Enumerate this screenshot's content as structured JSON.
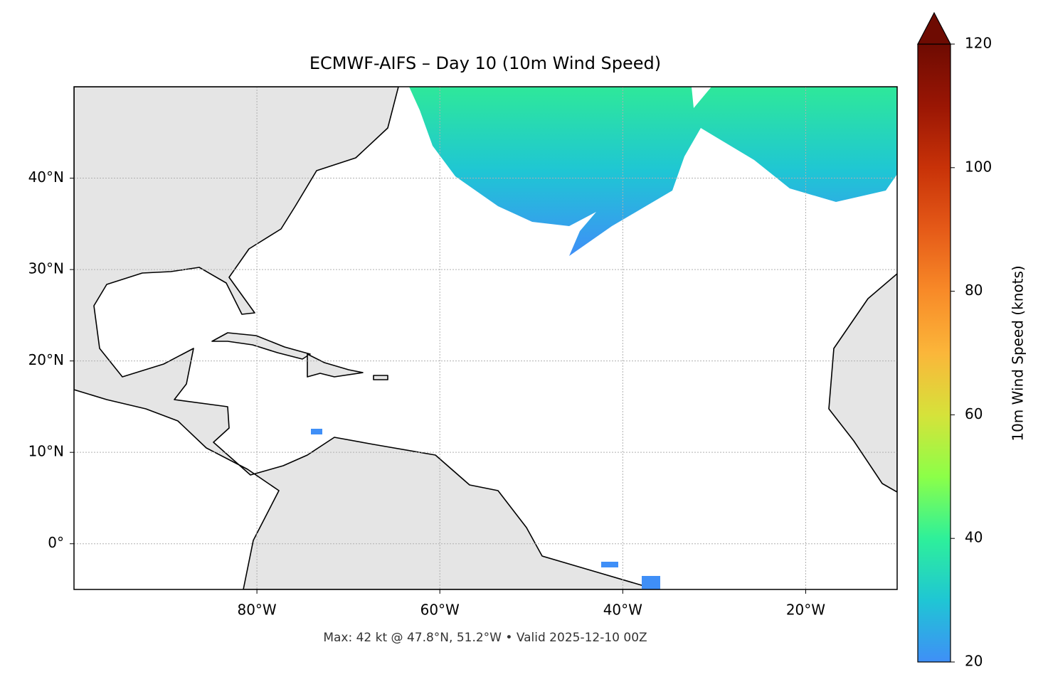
{
  "map": {
    "title": "ECMWF-AIFS – Day 10 (10m Wind Speed)",
    "footer": "Max: 42 kt @ 47.8°N, 51.2°W • Valid 2025-12-10 00Z",
    "lonlim": [
      -100,
      -10
    ],
    "latlim": [
      -5,
      50
    ],
    "lon_ticks": [
      {
        "value": -80,
        "label": "80°W"
      },
      {
        "value": -60,
        "label": "60°W"
      },
      {
        "value": -40,
        "label": "40°W"
      },
      {
        "value": -20,
        "label": "20°W"
      }
    ],
    "lat_ticks": [
      {
        "value": 0,
        "label": "0°"
      },
      {
        "value": 10,
        "label": "10°N"
      },
      {
        "value": 20,
        "label": "20°N"
      },
      {
        "value": 30,
        "label": "30°N"
      },
      {
        "value": 40,
        "label": "40°N"
      }
    ],
    "grid": true,
    "colorbar": {
      "label": "10m Wind Speed (knots)",
      "lim": [
        20,
        120
      ],
      "ticks": [
        20,
        40,
        60,
        80,
        100,
        120
      ],
      "colors": [
        "#3f8ff7",
        "#1fc6d4",
        "#2ef09a",
        "#8cff48",
        "#d6e23a",
        "#fbb63a",
        "#f88a28",
        "#e55a18",
        "#c83208",
        "#9a1604",
        "#6e0b02"
      ]
    }
  }
}
